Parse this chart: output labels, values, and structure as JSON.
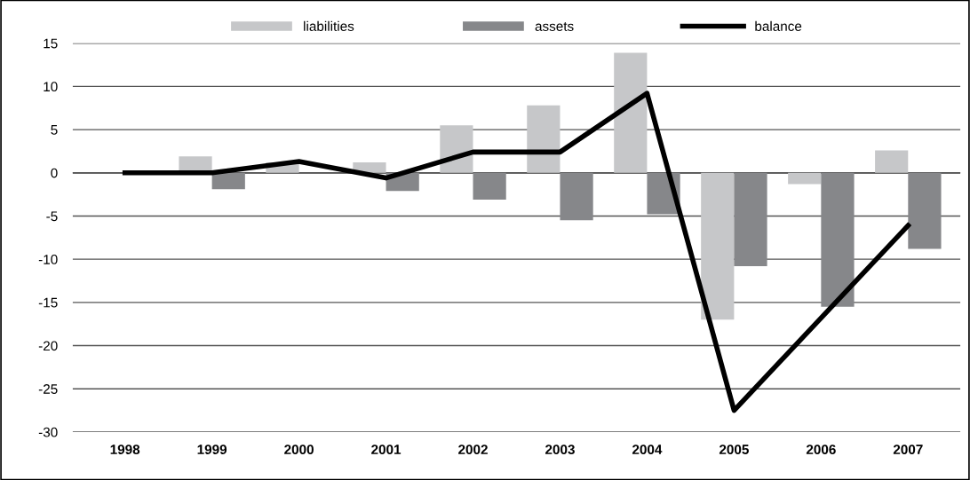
{
  "chart_data": {
    "type": "bar",
    "categories": [
      "1998",
      "1999",
      "2000",
      "2001",
      "2002",
      "2003",
      "2004",
      "2005",
      "2006",
      "2007"
    ],
    "series": [
      {
        "name": "liabilities",
        "color": "#c6c7c9",
        "values": [
          0,
          1.9,
          1.2,
          1.2,
          5.5,
          7.8,
          13.9,
          -17.0,
          -1.3,
          2.6
        ]
      },
      {
        "name": "assets",
        "color": "#86878a",
        "values": [
          0,
          -1.9,
          0,
          -2.1,
          -3.1,
          -5.5,
          -4.8,
          -10.8,
          -15.5,
          -8.8
        ]
      },
      {
        "name": "balance",
        "color": "#000000",
        "type": "line",
        "values": [
          0,
          0,
          1.3,
          -0.6,
          2.4,
          2.4,
          9.2,
          -27.5,
          -16.8,
          -6.1
        ]
      }
    ],
    "ylim": [
      -30,
      15
    ],
    "yticks": [
      -30,
      -25,
      -20,
      -15,
      -10,
      -5,
      0,
      5,
      10,
      15
    ],
    "grid": "y",
    "legend": "top",
    "marker": "none",
    "line_style": "solid"
  }
}
